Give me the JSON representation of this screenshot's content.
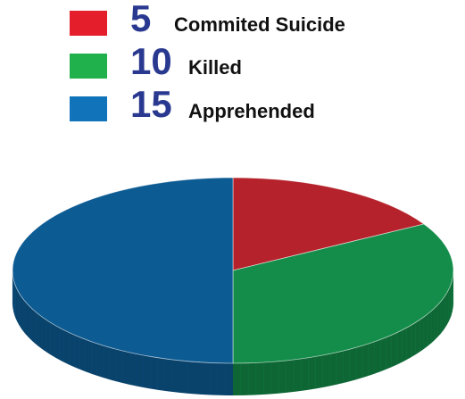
{
  "chart_data": {
    "type": "pie",
    "title": "",
    "slices": [
      {
        "label": "Commited Suicide",
        "value": 5,
        "color": "#b5222b"
      },
      {
        "label": "Killed",
        "value": 10,
        "color": "#138d49"
      },
      {
        "label": "Apprehended",
        "value": 15,
        "color": "#0d5b93"
      }
    ],
    "legend": [
      {
        "number": "5",
        "label": "Commited Suicide",
        "color": "#e51e2b"
      },
      {
        "number": "10",
        "label": "Killed",
        "color": "#20b14c"
      },
      {
        "number": "15",
        "label": "Apprehended",
        "color": "#1173b9"
      }
    ],
    "legend_position": "top",
    "style": "3d"
  }
}
